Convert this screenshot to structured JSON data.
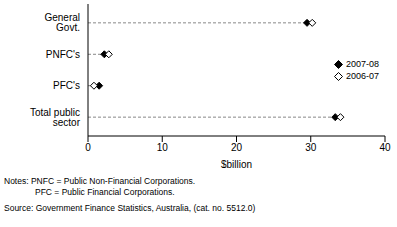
{
  "chart_data": {
    "type": "dot",
    "orientation": "horizontal",
    "categories": [
      "General Govt.",
      "PNFC's",
      "PFC's",
      "Total public sector"
    ],
    "series": [
      {
        "name": "2007-08",
        "color": "#000000",
        "marker": "diamond",
        "values": [
          29.5,
          2.2,
          1.5,
          33.3
        ]
      },
      {
        "name": "2006-07",
        "color": "#000000",
        "marker": "open_diamond",
        "values": [
          30.2,
          2.8,
          0.8,
          34.0
        ]
      }
    ],
    "x_label": "$billion",
    "xlim": [
      0,
      40
    ],
    "xticks": [
      0,
      10,
      20,
      30,
      40
    ],
    "grid": false,
    "legend": "right",
    "notes": [
      "Notes: PNFC = Public Non-Financial Corporations.",
      "PFC = Public Financial Corporations."
    ],
    "source": "Source: Government Finance Statistics, Australia, (cat. no. 5512.0)"
  }
}
